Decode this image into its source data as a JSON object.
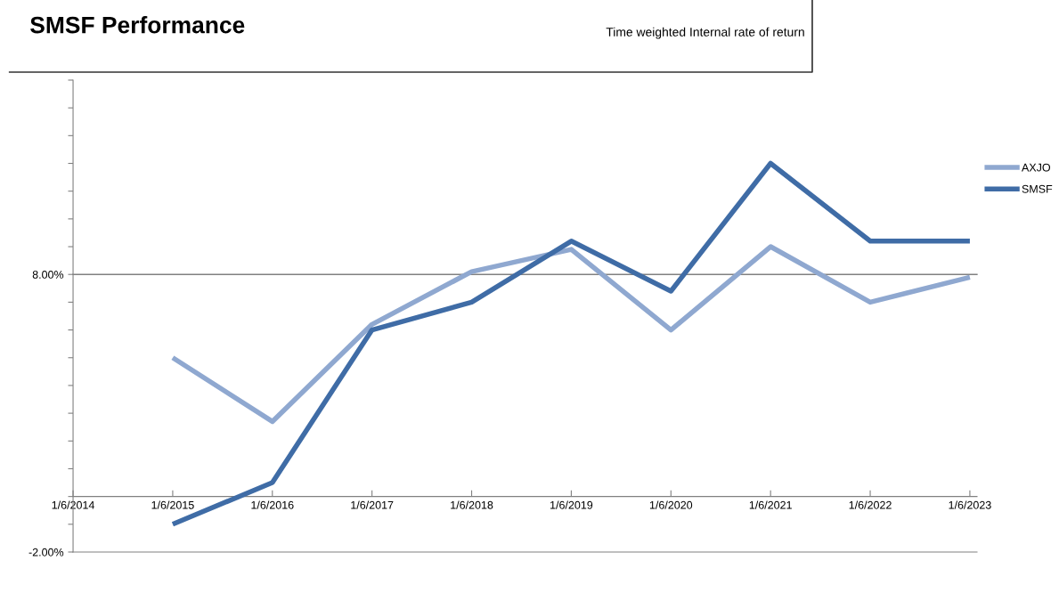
{
  "chart_data": {
    "type": "line",
    "title": "SMSF Performance",
    "subtitle": "Time weighted Internal rate of return",
    "categories": [
      "1/6/2014",
      "1/6/2015",
      "1/6/2016",
      "1/6/2017",
      "1/6/2018",
      "1/6/2019",
      "1/6/2020",
      "1/6/2021",
      "1/6/2022",
      "1/6/2023"
    ],
    "series": [
      {
        "name": "AXJO",
        "color": "#8fa8d0",
        "values": [
          null,
          5.0,
          2.7,
          6.2,
          8.1,
          8.9,
          6.0,
          9.0,
          7.0,
          7.9
        ]
      },
      {
        "name": "SMSF",
        "color": "#3f6ca6",
        "values": [
          null,
          -1.0,
          0.5,
          6.0,
          7.0,
          9.2,
          7.4,
          12.0,
          9.2,
          9.2
        ]
      }
    ],
    "ylim": [
      -2,
      15
    ],
    "yticks": [
      {
        "value": -2,
        "label": "-2.00%"
      },
      {
        "value": -1,
        "label": null
      },
      {
        "value": 0,
        "label": null
      },
      {
        "value": 1,
        "label": null
      },
      {
        "value": 2,
        "label": null
      },
      {
        "value": 3,
        "label": null
      },
      {
        "value": 4,
        "label": null
      },
      {
        "value": 5,
        "label": null
      },
      {
        "value": 6,
        "label": null
      },
      {
        "value": 7,
        "label": null
      },
      {
        "value": 8,
        "label": "8.00%"
      },
      {
        "value": 9,
        "label": null
      },
      {
        "value": 10,
        "label": null
      },
      {
        "value": 11,
        "label": null
      },
      {
        "value": 12,
        "label": null
      },
      {
        "value": 13,
        "label": null
      },
      {
        "value": 14,
        "label": null
      },
      {
        "value": 15,
        "label": null
      }
    ],
    "ref_lines": [
      {
        "axis": "y",
        "value": 8,
        "color": "#808080"
      }
    ],
    "grid": false,
    "legend": "right",
    "marker": "none",
    "line_style": "solid"
  }
}
